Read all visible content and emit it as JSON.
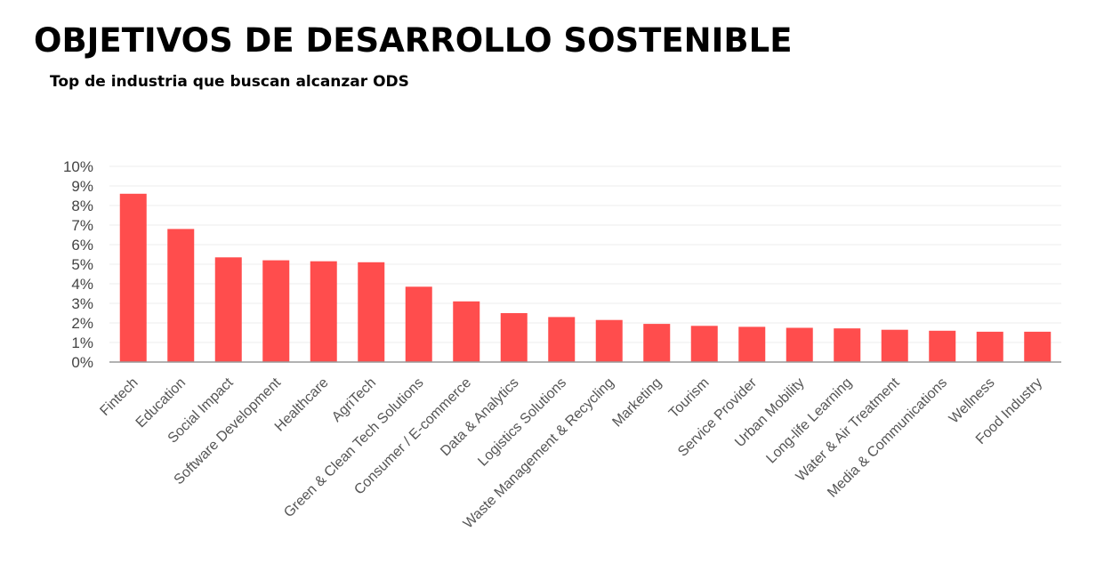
{
  "title": "OBJETIVOS DE DESARROLLO SOSTENIBLE",
  "subtitle": "Top de industria que buscan alcanzar ODS",
  "colors": {
    "bar": "#FF4D4D",
    "grid": "#eeeeee",
    "axis": "#999999"
  },
  "chart_data": {
    "type": "bar",
    "title": "Top de industria que buscan alcanzar ODS",
    "xlabel": "",
    "ylabel": "",
    "ylim": [
      0,
      10
    ],
    "y_ticks": [
      "0%",
      "1%",
      "2%",
      "3%",
      "4%",
      "5%",
      "6%",
      "7%",
      "8%",
      "9%",
      "10%"
    ],
    "grid": true,
    "categories": [
      "Fintech",
      "Education",
      "Social Impact",
      "Software Development",
      "Healthcare",
      "AgriTech",
      "Green & Clean Tech Solutions",
      "Consumer / E-commerce",
      "Data & Analytics",
      "Logistics Solutions",
      "Waste Management & Recycling",
      "Marketing",
      "Tourism",
      "Service Provider",
      "Urban Mobility",
      "Long-life Learning",
      "Water & Air Treatment",
      "Media & Communications",
      "Wellness",
      "Food Industry"
    ],
    "values": [
      8.6,
      6.8,
      5.35,
      5.2,
      5.15,
      5.1,
      3.85,
      3.1,
      2.5,
      2.3,
      2.15,
      1.95,
      1.85,
      1.8,
      1.75,
      1.72,
      1.65,
      1.6,
      1.55,
      1.55
    ],
    "unit": "%"
  }
}
